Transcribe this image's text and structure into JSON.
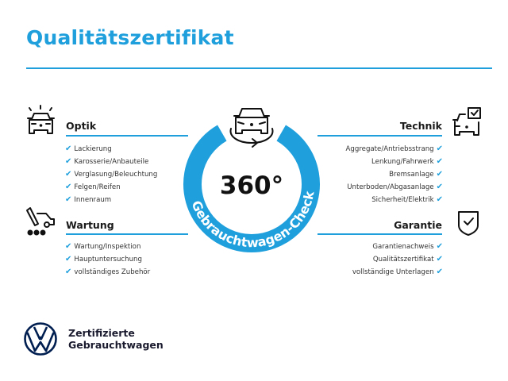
{
  "title": "Qualitätszertifikat",
  "colors": {
    "accent": "#1fa0dd",
    "logo": "#001e50",
    "text": "#1a1a1a"
  },
  "badge": {
    "degrees": "360°",
    "ring_text": "Gebrauchtwagen-Check",
    "icon": "car-rotate-icon"
  },
  "sections": {
    "optik": {
      "label": "Optik",
      "icon": "car-shine-icon",
      "items": [
        "Lackierung",
        "Karosserie/Anbauteile",
        "Verglasung/Beleuchtung",
        "Felgen/Reifen",
        "Innenraum"
      ]
    },
    "wartung": {
      "label": "Wartung",
      "icon": "tow-truck-wrench-icon",
      "items": [
        "Wartung/Inspektion",
        "Hauptuntersuchung",
        "vollständiges Zubehör"
      ]
    },
    "technik": {
      "label": "Technik",
      "icon": "car-checkbox-icon",
      "items": [
        "Aggregate/Antriebsstrang",
        "Lenkung/Fahrwerk",
        "Bremsanlage",
        "Unterboden/Abgasanlage",
        "Sicherheit/Elektrik"
      ]
    },
    "garantie": {
      "label": "Garantie",
      "icon": "shield-check-icon",
      "items": [
        "Garantienachweis",
        "Qualitätszertifikat",
        "vollständige Unterlagen"
      ]
    }
  },
  "check_glyph": "✔",
  "brand": {
    "line1": "Zertifizierte",
    "line2": "Gebrauchtwagen",
    "logo": "vw-logo"
  }
}
